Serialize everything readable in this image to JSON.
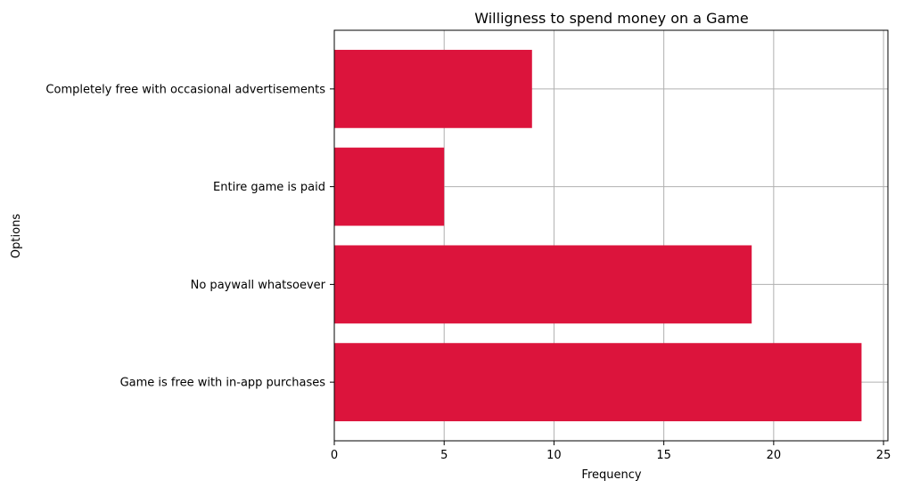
{
  "chart_data": {
    "type": "bar",
    "orientation": "horizontal",
    "title": "Willigness to spend money on a Game",
    "xlabel": "Frequency",
    "ylabel": "Options",
    "categories": [
      "Game is free with in-app purchases",
      "No paywall whatsoever",
      "Entire game is paid",
      "Completely free with occasional advertisements"
    ],
    "values": [
      24,
      19,
      5,
      9
    ],
    "xlim": [
      0,
      25.2
    ],
    "xticks": [
      0,
      5,
      10,
      15,
      20,
      25
    ],
    "grid": true,
    "bar_color": "#DC143C",
    "grid_color": "#B0B0B0"
  }
}
